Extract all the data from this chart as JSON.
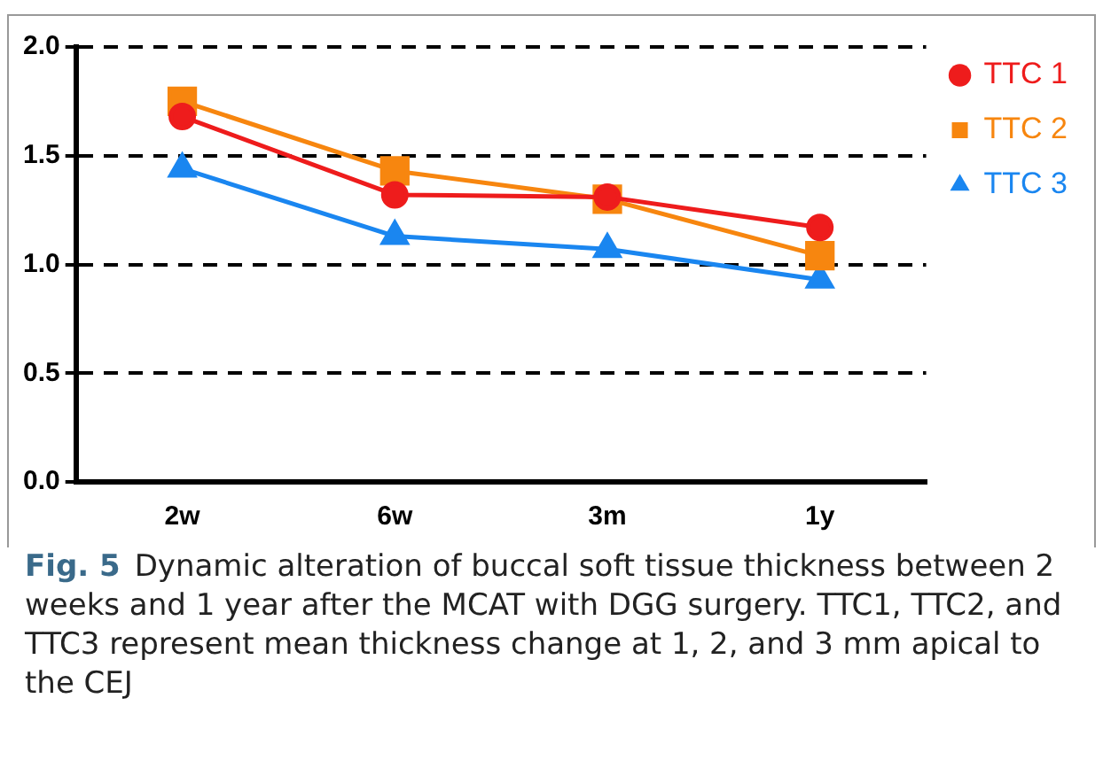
{
  "chart_data": {
    "type": "line",
    "categories": [
      "2w",
      "6w",
      "3m",
      "1y"
    ],
    "series": [
      {
        "name": "TTC 1",
        "color": "#ee1c1c",
        "marker": "circle",
        "values": [
          1.68,
          1.32,
          1.31,
          1.17
        ]
      },
      {
        "name": "TTC 2",
        "color": "#f7860f",
        "marker": "square",
        "values": [
          1.75,
          1.43,
          1.3,
          1.04
        ]
      },
      {
        "name": "TTC 3",
        "color": "#1a86f0",
        "marker": "triangle",
        "values": [
          1.44,
          1.13,
          1.07,
          0.93
        ]
      }
    ],
    "ylim": [
      0,
      2
    ],
    "yticks": [
      {
        "value": 0,
        "label": "0.0"
      },
      {
        "value": 0.5,
        "label": "0.5"
      },
      {
        "value": 1,
        "label": "1.0"
      },
      {
        "value": 1.5,
        "label": "1.5"
      },
      {
        "value": 2,
        "label": "2.0"
      }
    ],
    "grid": "y",
    "legend": "top right",
    "line_style": "solid",
    "annotations": [
      "Fig. 5",
      "Dynamic alteration of buccal soft tissue thickness between 2 weeks and 1 year after the MCAT with DGG surgery. TTC1, TTC2, and TTC3 represent mean thickness change at 1, 2, and 3 mm apical to the CEJ"
    ]
  }
}
